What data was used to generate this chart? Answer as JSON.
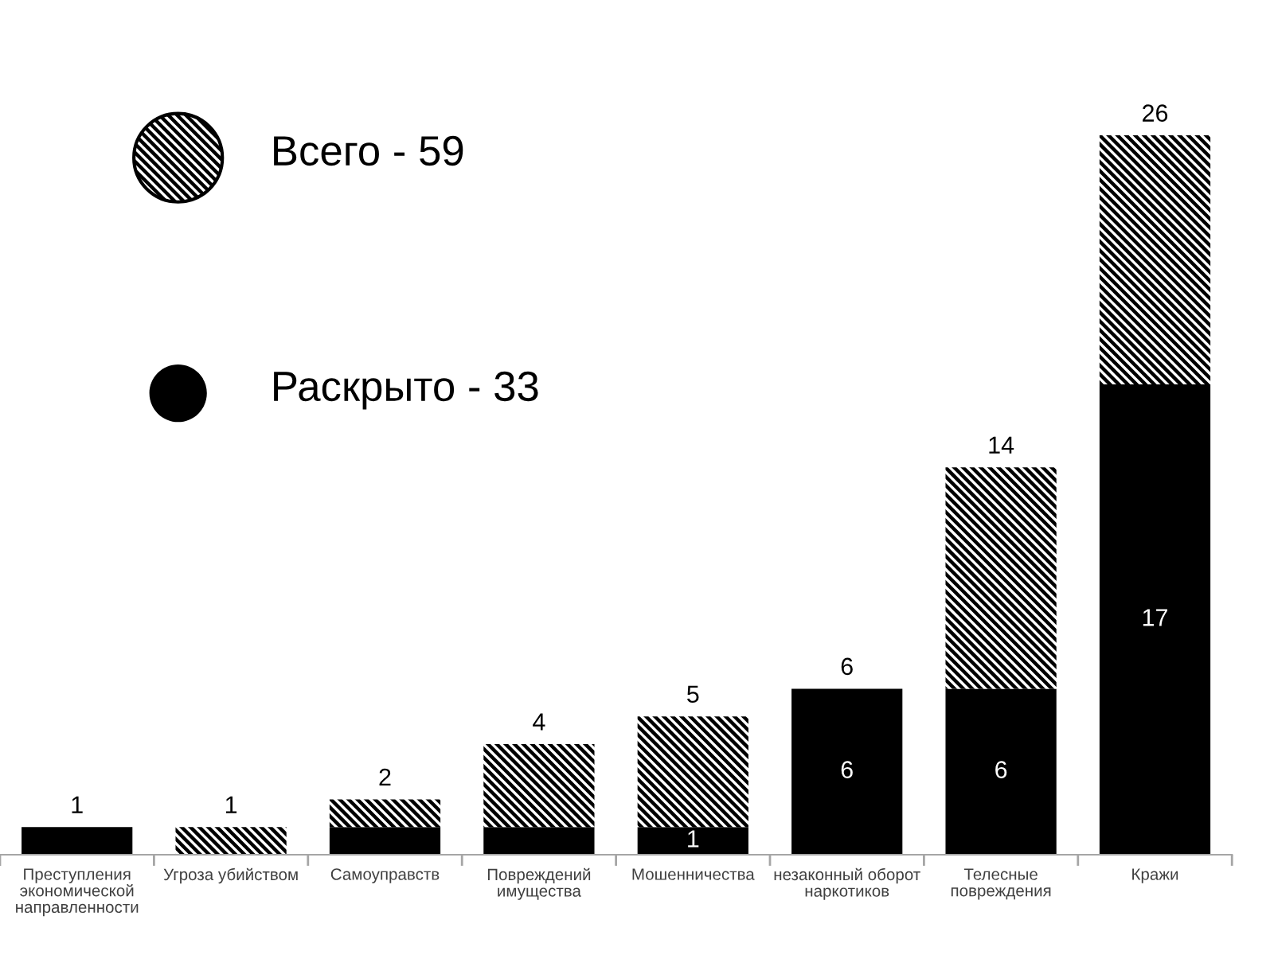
{
  "chart_data": {
    "type": "bar",
    "stacked": true,
    "categories": [
      "Преступления\nэкономической\nнаправленности",
      "Угроза убийством",
      "Самоуправств",
      "Повреждений\nимущества",
      "Мошенничества",
      "незаконный оборот\nнаркотиков",
      "Телесные\nповреждения",
      "Кражи"
    ],
    "series": [
      {
        "name": "Раскрыто - 33",
        "color": "#000000",
        "values": [
          1,
          0,
          1,
          1,
          1,
          6,
          6,
          17
        ],
        "value_labels": [
          null,
          null,
          null,
          null,
          "1",
          "6",
          "6",
          "17"
        ]
      },
      {
        "name": "Всего - 59",
        "color": "#000000",
        "values": [
          0,
          1,
          1,
          3,
          4,
          0,
          8,
          9
        ]
      }
    ],
    "totals": [
      "1",
      "1",
      "2",
      "4",
      "5",
      "6",
      "14",
      "26"
    ],
    "legend": "top left",
    "tick_labels": "x"
  }
}
